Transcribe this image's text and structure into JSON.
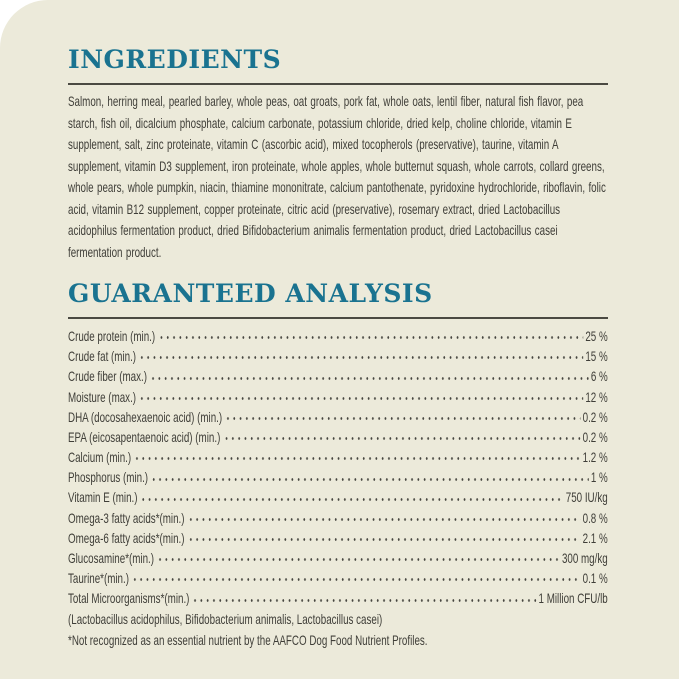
{
  "colors": {
    "label_background": "#eceada",
    "outer_background": "#ffffff",
    "heading_teal": "#1a7390",
    "body_text": "#3f3e38",
    "rule": "#4b4a42"
  },
  "ingredients": {
    "title": "INGREDIENTS",
    "text": "Salmon, herring meal, pearled barley, whole peas, oat groats, pork fat, whole oats, lentil fiber, natural fish flavor, pea starch, fish oil, dicalcium phosphate, calcium carbonate, potassium chloride, dried kelp, choline chloride, vitamin E supplement, salt, zinc proteinate, vitamin C (ascorbic acid), mixed tocopherols (preservative), taurine, vitamin A supplement, vitamin D3 supplement, iron proteinate, whole apples, whole butternut squash, whole carrots, collard greens, whole pears, whole pumpkin, niacin, thiamine mononitrate, calcium pantothenate, pyridoxine hydrochloride, riboflavin, folic acid, vitamin B12 supplement, copper proteinate, citric acid (preservative), rosemary extract, dried Lactobacillus acidophilus fermentation product, dried Bifidobacterium animalis fermentation product, dried Lactobacillus casei fermentation product."
  },
  "analysis": {
    "title": "GUARANTEED ANALYSIS",
    "rows": [
      {
        "label": "Crude protein (min.)",
        "value": "25 %"
      },
      {
        "label": "Crude fat (min.)",
        "value": "15 %"
      },
      {
        "label": "Crude fiber (max.)",
        "value": "6 %"
      },
      {
        "label": "Moisture (max.)",
        "value": "12 %"
      },
      {
        "label": "DHA (docosahexaenoic acid) (min.)",
        "value": "0.2 %"
      },
      {
        "label": "EPA (eicosapentaenoic acid) (min.)",
        "value": "0.2 %"
      },
      {
        "label": "Calcium (min.)",
        "value": "1.2 %"
      },
      {
        "label": "Phosphorus (min.)",
        "value": "1 %"
      },
      {
        "label": "Vitamin E (min.)",
        "value": "750 IU/kg"
      },
      {
        "label": "Omega-3 fatty acids*(min.)",
        "value": "0.8 %"
      },
      {
        "label": "Omega-6 fatty acids*(min.)",
        "value": "2.1 %"
      },
      {
        "label": "Glucosamine*(min.)",
        "value": "300 mg/kg"
      },
      {
        "label": "Taurine*(min.)",
        "value": "0.1 %"
      },
      {
        "label": "Total Microorganisms*(min.)",
        "value": "1 Million CFU/lb"
      }
    ],
    "microorganisms_detail": "(Lactobacillus acidophilus, Bifidobacterium animalis, Lactobacillus casei)",
    "footnote": "*Not recognized as an essential nutrient by the AAFCO Dog Food Nutrient Profiles."
  }
}
